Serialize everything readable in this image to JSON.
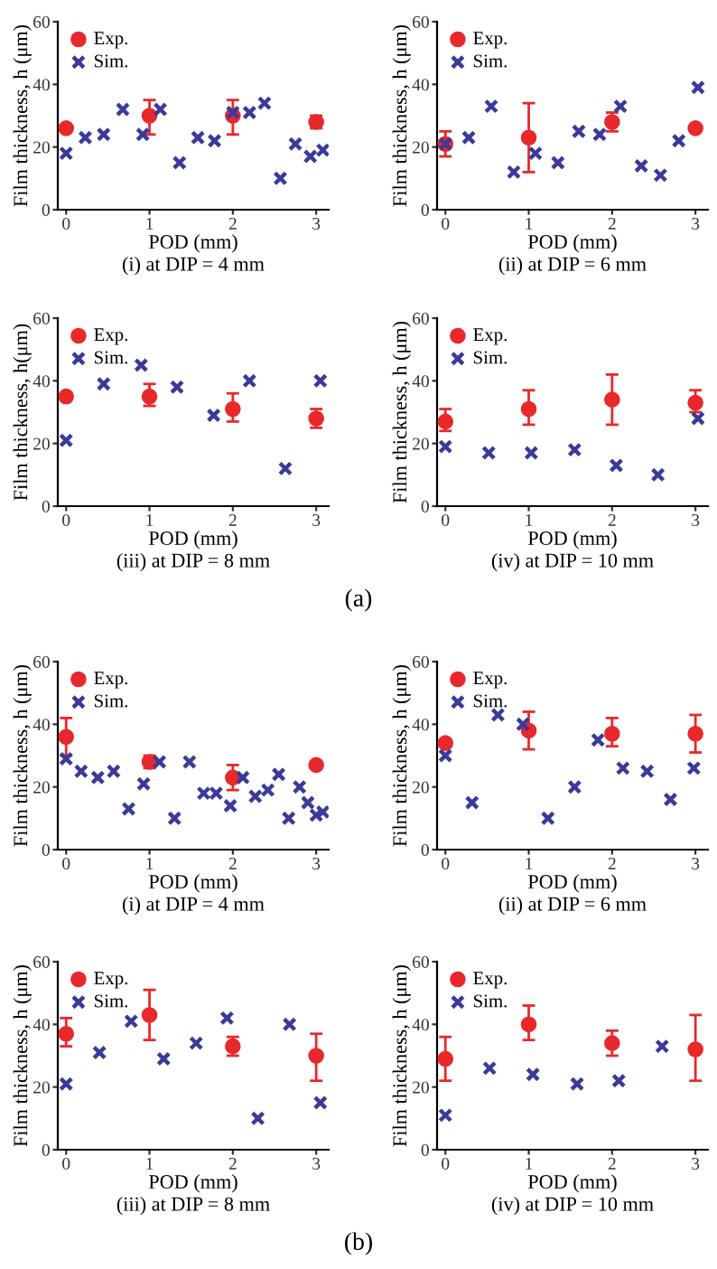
{
  "chart_data": [
    {
      "type": "scatter",
      "subtitle": "(i) at DIP = 4 mm",
      "xlabel": "POD (mm)",
      "ylabel": "Film thickness, h (μm)",
      "xlim": [
        -0.1,
        3.15
      ],
      "xticks": [
        0,
        1,
        2,
        3
      ],
      "ylim": [
        0,
        60
      ],
      "yticks": [
        0,
        20,
        40,
        60
      ],
      "legend": "top left",
      "grid": false,
      "series": [
        {
          "name": "Exp.",
          "color": "#e8282a",
          "marker": "circle",
          "x": [
            0,
            1,
            2,
            3
          ],
          "values": [
            26,
            30,
            30,
            28
          ],
          "errors": [
            null,
            [
              24,
              35
            ],
            [
              24,
              35
            ],
            [
              26,
              30
            ]
          ]
        },
        {
          "name": "Sim.",
          "color": "#3a3a9a",
          "marker": "cross",
          "x": [
            0,
            0.23,
            0.45,
            0.68,
            0.92,
            1.13,
            1.36,
            1.58,
            1.78,
            2.0,
            2.2,
            2.38,
            2.57,
            2.75,
            2.93,
            3.08
          ],
          "values": [
            18,
            23,
            24,
            32,
            24,
            32,
            15,
            23,
            22,
            31,
            31,
            34,
            10,
            21,
            17,
            19
          ]
        }
      ]
    },
    {
      "type": "scatter",
      "subtitle": "(ii) at DIP = 6 mm",
      "xlabel": "POD (mm)",
      "ylabel": "Film thickness, h (μm)",
      "xlim": [
        -0.1,
        3.15
      ],
      "xticks": [
        0,
        1,
        2,
        3
      ],
      "ylim": [
        0,
        60
      ],
      "yticks": [
        0,
        20,
        40,
        60
      ],
      "legend": "top left",
      "grid": false,
      "series": [
        {
          "name": "Exp.",
          "color": "#e8282a",
          "marker": "circle",
          "x": [
            0,
            1,
            2,
            3
          ],
          "values": [
            21,
            23,
            28,
            26
          ],
          "errors": [
            [
              17,
              25
            ],
            [
              12,
              34
            ],
            [
              25,
              31
            ],
            null
          ]
        },
        {
          "name": "Sim.",
          "color": "#3a3a9a",
          "marker": "cross",
          "x": [
            0,
            0.28,
            0.55,
            0.82,
            1.08,
            1.35,
            1.6,
            1.85,
            2.1,
            2.35,
            2.58,
            2.8,
            3.03
          ],
          "values": [
            21,
            23,
            33,
            12,
            18,
            15,
            25,
            24,
            33,
            14,
            11,
            22,
            39
          ]
        }
      ]
    },
    {
      "type": "scatter",
      "subtitle": "(iii) at DIP = 8 mm",
      "xlabel": "POD (mm)",
      "ylabel": "Film thickness, h(μm)",
      "xlim": [
        -0.1,
        3.15
      ],
      "xticks": [
        0,
        1,
        2,
        3
      ],
      "ylim": [
        0,
        60
      ],
      "yticks": [
        0,
        20,
        40,
        60
      ],
      "legend": "top left",
      "grid": false,
      "annotations": [
        "(a)"
      ],
      "series": [
        {
          "name": "Exp.",
          "color": "#e8282a",
          "marker": "circle",
          "x": [
            0,
            1,
            2,
            3
          ],
          "values": [
            35,
            35,
            31,
            28
          ],
          "errors": [
            null,
            [
              32,
              39
            ],
            [
              27,
              36
            ],
            [
              25,
              31
            ]
          ]
        },
        {
          "name": "Sim.",
          "color": "#3a3a9a",
          "marker": "cross",
          "x": [
            0,
            0.45,
            0.9,
            1.33,
            1.77,
            2.2,
            2.63,
            3.05
          ],
          "values": [
            21,
            39,
            45,
            38,
            29,
            40,
            12,
            40
          ]
        }
      ]
    },
    {
      "type": "scatter",
      "subtitle": "(iv) at DIP = 10 mm",
      "xlabel": "POD (mm)",
      "ylabel": "Film thickness, h (μm)",
      "xlim": [
        -0.1,
        3.15
      ],
      "xticks": [
        0,
        1,
        2,
        3
      ],
      "ylim": [
        0,
        60
      ],
      "yticks": [
        0,
        20,
        40,
        60
      ],
      "legend": "top left",
      "grid": false,
      "series": [
        {
          "name": "Exp.",
          "color": "#e8282a",
          "marker": "circle",
          "x": [
            0,
            1,
            2,
            3
          ],
          "values": [
            27,
            31,
            34,
            33
          ],
          "errors": [
            [
              24,
              31
            ],
            [
              26,
              37
            ],
            [
              26,
              42
            ],
            [
              30,
              37
            ]
          ]
        },
        {
          "name": "Sim.",
          "color": "#3a3a9a",
          "marker": "cross",
          "x": [
            0,
            0.52,
            1.03,
            1.55,
            2.05,
            2.55,
            3.03
          ],
          "values": [
            19,
            17,
            17,
            18,
            13,
            10,
            28
          ]
        }
      ]
    },
    {
      "type": "scatter",
      "subtitle": "(i) at DIP = 4 mm",
      "xlabel": "POD (mm)",
      "ylabel": "Film thickness, h (μm)",
      "xlim": [
        -0.1,
        3.15
      ],
      "xticks": [
        0,
        1,
        2,
        3
      ],
      "ylim": [
        0,
        60
      ],
      "yticks": [
        0,
        20,
        40,
        60
      ],
      "legend": "top left",
      "grid": false,
      "series": [
        {
          "name": "Exp.",
          "color": "#e8282a",
          "marker": "circle",
          "x": [
            0,
            1,
            2,
            3
          ],
          "values": [
            36,
            28,
            23,
            27
          ],
          "errors": [
            [
              30,
              42
            ],
            [
              26,
              30
            ],
            [
              19,
              27
            ],
            null
          ]
        },
        {
          "name": "Sim.",
          "color": "#3a3a9a",
          "marker": "cross",
          "x": [
            0,
            0.18,
            0.38,
            0.57,
            0.75,
            0.93,
            1.12,
            1.3,
            1.48,
            1.65,
            1.8,
            1.97,
            2.12,
            2.27,
            2.42,
            2.55,
            2.67,
            2.8,
            2.9,
            3.0,
            3.08
          ],
          "values": [
            29,
            25,
            23,
            25,
            13,
            21,
            28,
            10,
            28,
            18,
            18,
            14,
            23,
            17,
            19,
            24,
            10,
            20,
            15,
            11,
            12
          ]
        }
      ]
    },
    {
      "type": "scatter",
      "subtitle": "(ii) at DIP = 6 mm",
      "xlabel": "POD (mm)",
      "ylabel": "Film thickness, h (μm)",
      "xlim": [
        -0.1,
        3.15
      ],
      "xticks": [
        0,
        1,
        2,
        3
      ],
      "ylim": [
        0,
        60
      ],
      "yticks": [
        0,
        20,
        40,
        60
      ],
      "legend": "top left",
      "grid": false,
      "series": [
        {
          "name": "Exp.",
          "color": "#e8282a",
          "marker": "circle",
          "x": [
            0,
            1,
            2,
            3
          ],
          "values": [
            34,
            38,
            37,
            37
          ],
          "errors": [
            null,
            [
              32,
              44
            ],
            [
              33,
              42
            ],
            [
              31,
              43
            ]
          ]
        },
        {
          "name": "Sim.",
          "color": "#3a3a9a",
          "marker": "cross",
          "x": [
            0,
            0.32,
            0.63,
            0.93,
            1.23,
            1.55,
            1.83,
            2.13,
            2.42,
            2.7,
            2.98
          ],
          "values": [
            30,
            15,
            43,
            40,
            10,
            20,
            35,
            26,
            25,
            16,
            26
          ]
        }
      ]
    },
    {
      "type": "scatter",
      "subtitle": "(iii) at DIP = 8 mm",
      "xlabel": "POD (mm)",
      "ylabel": "Film thickness, h (μm)",
      "xlim": [
        -0.1,
        3.15
      ],
      "xticks": [
        0,
        1,
        2,
        3
      ],
      "ylim": [
        0,
        60
      ],
      "yticks": [
        0,
        20,
        40,
        60
      ],
      "legend": "top left",
      "grid": false,
      "annotations": [
        "(b)"
      ],
      "series": [
        {
          "name": "Exp.",
          "color": "#e8282a",
          "marker": "circle",
          "x": [
            0,
            1,
            2,
            3
          ],
          "values": [
            37,
            43,
            33,
            30
          ],
          "errors": [
            [
              33,
              42
            ],
            [
              35,
              51
            ],
            [
              30,
              36
            ],
            [
              22,
              37
            ]
          ]
        },
        {
          "name": "Sim.",
          "color": "#3a3a9a",
          "marker": "cross",
          "x": [
            0,
            0.4,
            0.78,
            1.17,
            1.56,
            1.93,
            2.3,
            2.68,
            3.05
          ],
          "values": [
            21,
            31,
            41,
            29,
            34,
            42,
            10,
            40,
            15
          ]
        }
      ]
    },
    {
      "type": "scatter",
      "subtitle": "(iv) at DIP = 10 mm",
      "xlabel": "POD (mm)",
      "ylabel": "Film thickness, h (μm)",
      "xlim": [
        -0.1,
        3.15
      ],
      "xticks": [
        0,
        1,
        2,
        3
      ],
      "ylim": [
        0,
        60
      ],
      "yticks": [
        0,
        20,
        40,
        60
      ],
      "legend": "top left",
      "grid": false,
      "series": [
        {
          "name": "Exp.",
          "color": "#e8282a",
          "marker": "circle",
          "x": [
            0,
            1,
            2,
            3
          ],
          "values": [
            29,
            40,
            34,
            32
          ],
          "errors": [
            [
              22,
              36
            ],
            [
              35,
              46
            ],
            [
              30,
              38
            ],
            [
              22,
              43
            ]
          ]
        },
        {
          "name": "Sim.",
          "color": "#3a3a9a",
          "marker": "cross",
          "x": [
            0,
            0.53,
            1.05,
            1.58,
            2.08,
            2.6
          ],
          "values": [
            11,
            26,
            24,
            21,
            22,
            33
          ]
        }
      ]
    }
  ]
}
